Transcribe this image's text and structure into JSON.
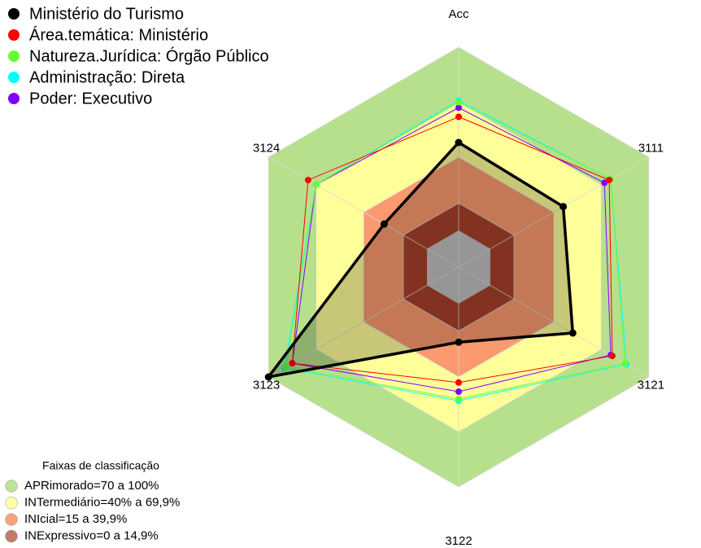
{
  "chart_data": {
    "type": "radar",
    "categories": [
      "Acc",
      "3111",
      "3121",
      "3122",
      "3123",
      "3124"
    ],
    "ylim": [
      -20,
      100
    ],
    "series": [
      {
        "name": "Ministério do Turismo",
        "color": "#000000",
        "values": [
          48,
          46,
          52,
          21,
          100,
          27
        ]
      },
      {
        "name": "Área.temática: Ministério",
        "color": "#ff0000",
        "values": [
          62,
          75,
          77,
          43,
          85,
          75
        ]
      },
      {
        "name": "Natureza.Jurídica: Órgão Público",
        "color": "#66ff33",
        "values": [
          70,
          76,
          85,
          52,
          89,
          70
        ]
      },
      {
        "name": "Administração: Direta",
        "color": "#00ffff",
        "values": [
          71,
          76,
          86,
          53,
          90,
          70
        ]
      },
      {
        "name": "Poder: Executivo",
        "color": "#8000ff",
        "values": [
          67,
          72,
          76,
          48,
          85,
          70
        ]
      }
    ],
    "bands_title": "Faixas de classificação",
    "bands": [
      {
        "name": "APRimorado=70 a 100%",
        "color": "#b7e08c",
        "range": [
          70,
          100
        ]
      },
      {
        "name": "INTermediário=40% a 69,9%",
        "color": "#ffff99",
        "range": [
          40,
          69.9
        ]
      },
      {
        "name": "INIcial=15 a 39,9%",
        "color": "#fb9a6e",
        "range": [
          15,
          39.9
        ]
      },
      {
        "name": "INExpressivo=0 a 14,9%",
        "color": "#a8412b",
        "range": [
          0,
          14.9
        ]
      }
    ]
  }
}
